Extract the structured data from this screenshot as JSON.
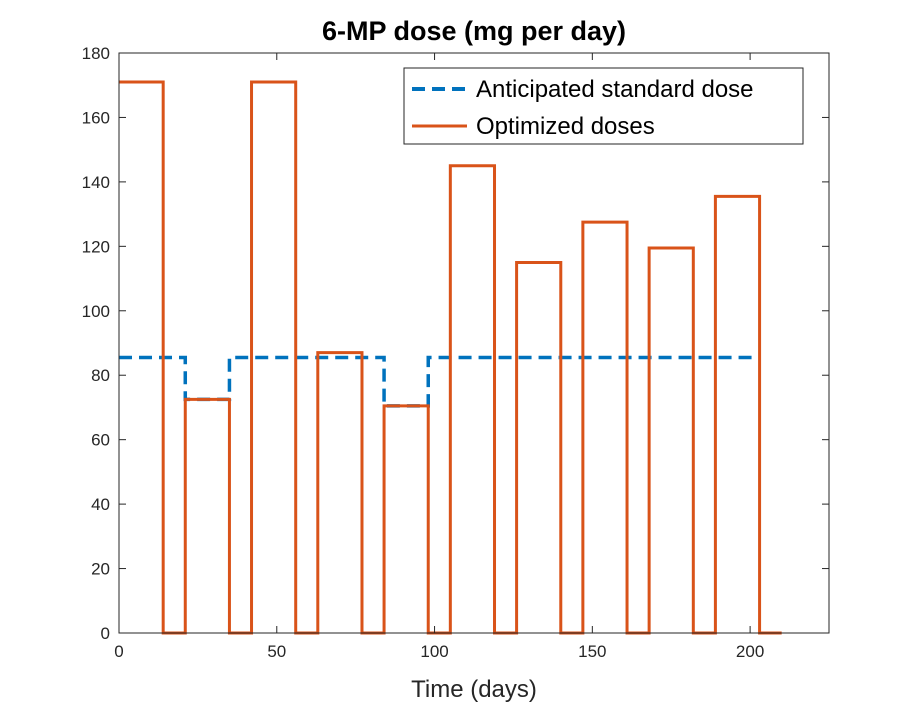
{
  "chart_data": {
    "type": "line",
    "title": "6-MP dose (mg per day)",
    "xlabel": "Time (days)",
    "ylabel": "",
    "xlim": [
      0,
      225
    ],
    "ylim": [
      0,
      180
    ],
    "xticks": [
      0,
      50,
      100,
      150,
      200
    ],
    "yticks": [
      0,
      20,
      40,
      60,
      80,
      100,
      120,
      140,
      160,
      180
    ],
    "grid": false,
    "legend_position": "top-right",
    "series": [
      {
        "name": "Anticipated standard dose",
        "style": "dashed",
        "color": "#0072BD",
        "x": [
          0,
          21,
          21,
          35,
          35,
          84,
          84,
          98,
          98,
          203
        ],
        "y": [
          85.5,
          85.5,
          72.5,
          72.5,
          85.5,
          85.5,
          70.5,
          70.5,
          85.5,
          85.5
        ]
      },
      {
        "name": "Optimized doses",
        "style": "solid",
        "color": "#D95319",
        "x": [
          0,
          14,
          14,
          21,
          21,
          35,
          35,
          42,
          42,
          56,
          56,
          63,
          63,
          77,
          77,
          84,
          84,
          98,
          98,
          105,
          105,
          119,
          119,
          126,
          126,
          140,
          140,
          147,
          147,
          161,
          161,
          168,
          168,
          182,
          182,
          189,
          189,
          203,
          203,
          210
        ],
        "y": [
          171,
          171,
          0,
          0,
          72.5,
          72.5,
          0,
          0,
          171,
          171,
          0,
          0,
          87,
          87,
          0,
          0,
          70.5,
          70.5,
          0,
          0,
          145,
          145,
          0,
          0,
          115,
          115,
          0,
          0,
          127.5,
          127.5,
          0,
          0,
          119.5,
          119.5,
          0,
          0,
          135.5,
          135.5,
          0,
          0
        ]
      }
    ]
  }
}
